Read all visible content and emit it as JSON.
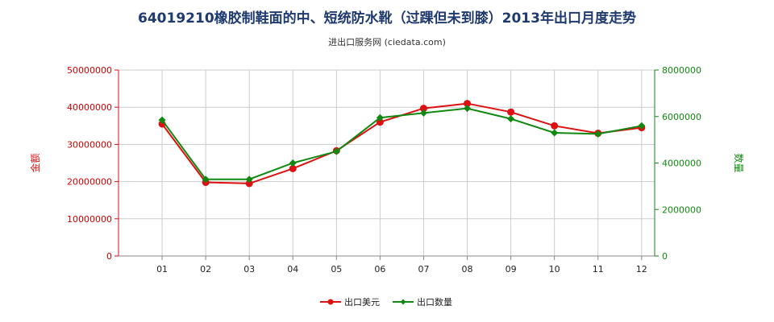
{
  "header": {
    "title": "64019210橡胶制鞋面的中、短统防水靴（过踝但未到膝）2013年出口月度走势",
    "subtitle": "进出口服务网 (ciedata.com)"
  },
  "colors": {
    "amount": "#dd1111",
    "quantity": "#118811",
    "grid": "#cccccc"
  },
  "chart_data": {
    "type": "line",
    "title": "64019210橡胶制鞋面的中、短统防水靴（过踝但未到膝）2013年出口月度走势",
    "categories": [
      "01",
      "02",
      "03",
      "04",
      "05",
      "06",
      "07",
      "08",
      "09",
      "10",
      "11",
      "12"
    ],
    "y_left": {
      "label": "金额",
      "ylim": [
        0,
        50000000
      ],
      "ticks": [
        "50000000",
        "40000000",
        "30000000",
        "20000000",
        "10000000",
        "0"
      ]
    },
    "y_right": {
      "label": "数量",
      "ylim": [
        0,
        8000000
      ],
      "ticks": [
        "8000000",
        "6000000",
        "4000000",
        "2000000",
        "0"
      ]
    },
    "series": [
      {
        "name": "出口美元",
        "axis": "left",
        "values": [
          35500000,
          19800000,
          19500000,
          23500000,
          28300000,
          36000000,
          39700000,
          41000000,
          38700000,
          35000000,
          33000000,
          34500000
        ]
      },
      {
        "name": "出口数量",
        "axis": "right",
        "values": [
          5850000,
          3300000,
          3300000,
          4000000,
          4500000,
          5950000,
          6150000,
          6350000,
          5900000,
          5300000,
          5250000,
          5600000
        ]
      }
    ],
    "grid": true,
    "legend": "bottom-center"
  }
}
